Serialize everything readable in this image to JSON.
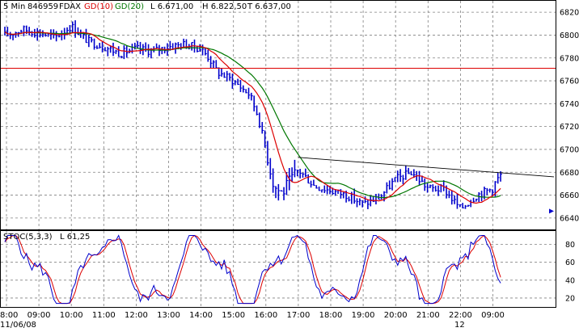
{
  "chart_data": [
    {
      "type": "ohlc",
      "header": {
        "interval": "5 Min",
        "symbol_id": "846959",
        "symbol": "FDAX",
        "ma_short_label": "GD(10)",
        "ma_long_label": "GD(20)",
        "low_label": "L 6.671,00",
        "high_label": "H 6.822,50",
        "last_label": "T 6.637,00"
      },
      "ylim": [
        6630,
        6830
      ],
      "yticks": [
        6640,
        6660,
        6680,
        6700,
        6720,
        6740,
        6760,
        6780,
        6800,
        6820
      ],
      "ytick_labels": [
        "6640",
        "6660",
        "6680",
        "6700",
        "6720",
        "6740",
        "6760",
        "6780",
        "6800",
        "6820"
      ],
      "horizontal_line": 6771,
      "trend_line": {
        "start": [
          "17:00",
          6693
        ],
        "end": [
          "09:45",
          6677
        ]
      },
      "marker_value": 6646,
      "price_profile": [
        [
          "08:00",
          6800
        ],
        [
          "08:30",
          6805
        ],
        [
          "09:00",
          6802
        ],
        [
          "09:30",
          6798
        ],
        [
          "10:00",
          6808
        ],
        [
          "10:30",
          6795
        ],
        [
          "11:00",
          6790
        ],
        [
          "11:30",
          6784
        ],
        [
          "12:00",
          6788
        ],
        [
          "12:30",
          6786
        ],
        [
          "13:00",
          6790
        ],
        [
          "13:30",
          6792
        ],
        [
          "14:00",
          6788
        ],
        [
          "14:15",
          6780
        ],
        [
          "14:30",
          6768
        ],
        [
          "15:00",
          6760
        ],
        [
          "15:30",
          6748
        ],
        [
          "15:45",
          6730
        ],
        [
          "16:00",
          6700
        ],
        [
          "16:15",
          6668
        ],
        [
          "16:30",
          6662
        ],
        [
          "17:00",
          6682
        ],
        [
          "17:30",
          6668
        ],
        [
          "18:00",
          6664
        ],
        [
          "18:30",
          6660
        ],
        [
          "19:00",
          6652
        ],
        [
          "19:30",
          6658
        ],
        [
          "20:00",
          6674
        ],
        [
          "20:30",
          6680
        ],
        [
          "21:00",
          6666
        ],
        [
          "21:30",
          6665
        ],
        [
          "22:00",
          6648
        ],
        [
          "22:30",
          6660
        ],
        [
          "23:00",
          6666
        ],
        [
          "09:00",
          6668
        ],
        [
          "09:15",
          6678
        ]
      ]
    },
    {
      "type": "line",
      "title": "STOC(5,3,3)",
      "value_label": "L 61,25",
      "ylim": [
        10,
        95
      ],
      "yticks": [
        20,
        40,
        60,
        80
      ],
      "ytick_labels": [
        "20",
        "40",
        "60",
        "80"
      ],
      "series": [
        {
          "color": "#0000cc"
        },
        {
          "color": "#dd0000"
        }
      ]
    }
  ],
  "x_axis": {
    "ticks": [
      "08:00",
      "09:00",
      "10:00",
      "11:00",
      "12:00",
      "13:00",
      "14:00",
      "15:00",
      "16:00",
      "17:00",
      "18:00",
      "19:00",
      "20:00",
      "21:00",
      "22:00",
      "09:00"
    ],
    "date_label": "11/06/08",
    "day_label": "12"
  },
  "colors": {
    "bars": "#0000cc",
    "ma_short": "#dd0000",
    "ma_long": "#007700",
    "horizontal_line": "#dd0000",
    "trend_line": "#000000",
    "grid": "#808080"
  }
}
